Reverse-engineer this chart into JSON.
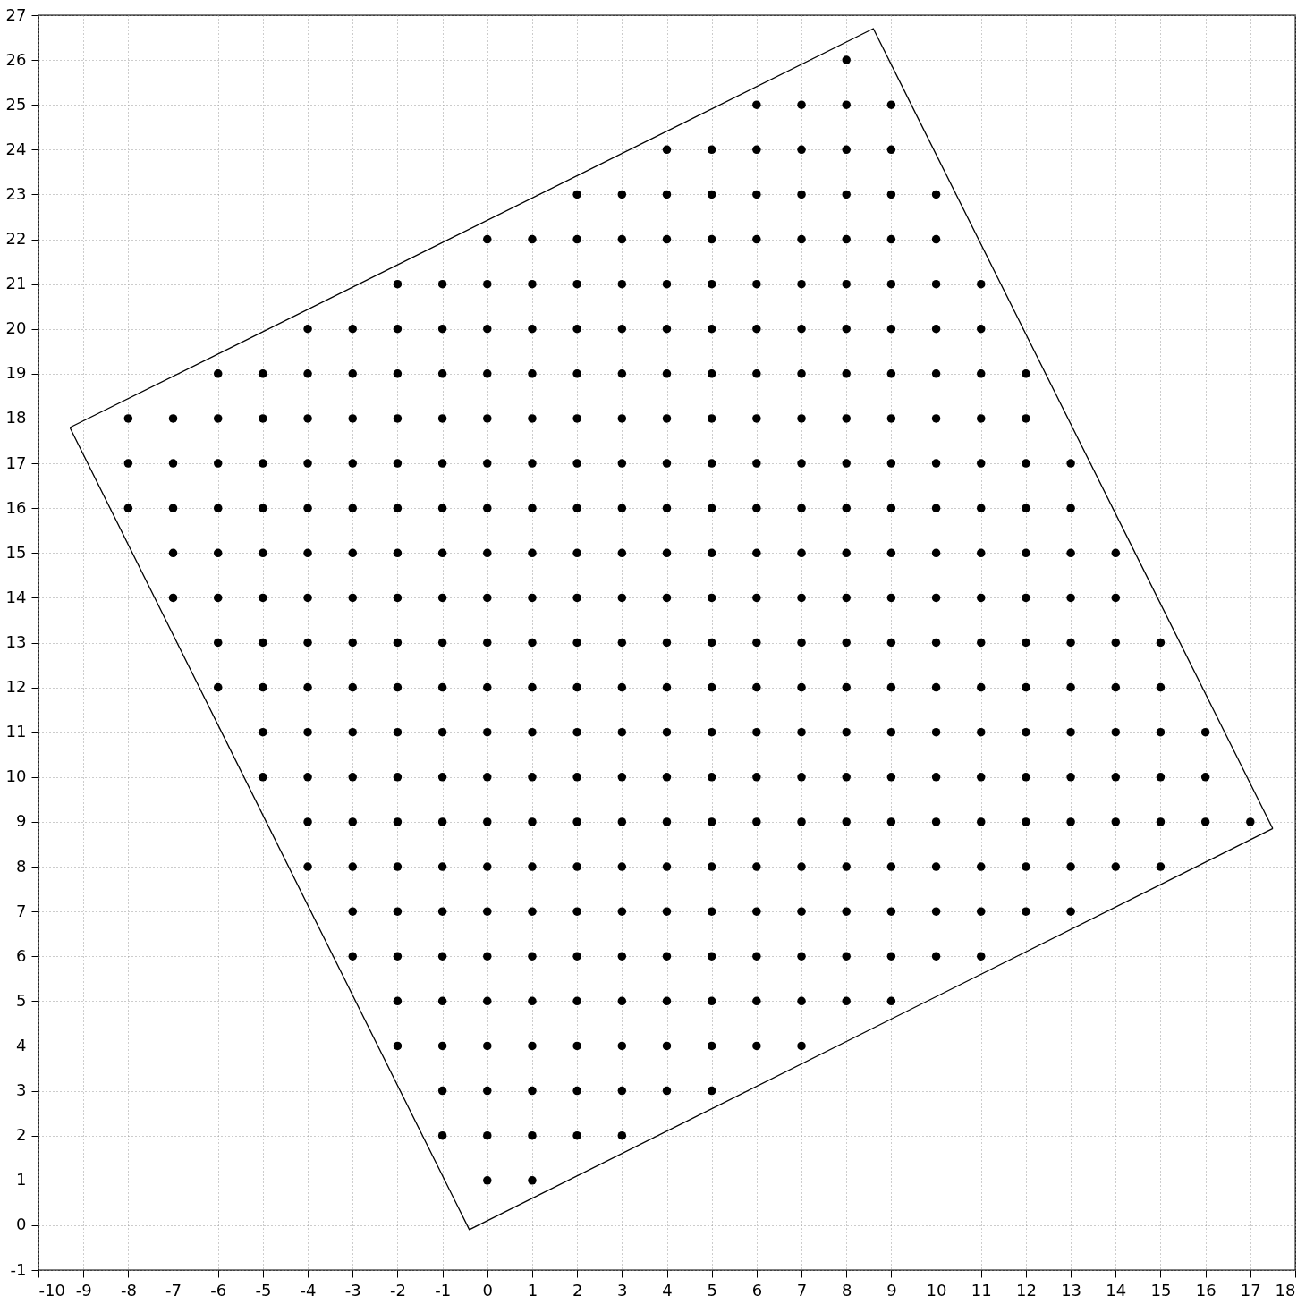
{
  "chart_data": {
    "type": "scatter",
    "marker": "circle",
    "grid": true,
    "xlim": [
      -10,
      18
    ],
    "ylim": [
      -1,
      27
    ],
    "xticks": [
      -10,
      -9,
      -8,
      -7,
      -6,
      -5,
      -4,
      -3,
      -2,
      -1,
      0,
      1,
      2,
      3,
      4,
      5,
      6,
      7,
      8,
      9,
      10,
      11,
      12,
      13,
      14,
      15,
      16,
      17,
      18
    ],
    "yticks": [
      -1,
      0,
      1,
      2,
      3,
      4,
      5,
      6,
      7,
      8,
      9,
      10,
      11,
      12,
      13,
      14,
      15,
      16,
      17,
      18,
      19,
      20,
      21,
      22,
      23,
      24,
      25,
      26,
      27
    ],
    "series": [
      {
        "type": "line",
        "marker": "none",
        "color": "#000000",
        "x": [
          -9.3,
          -0.4,
          17.5
        ],
        "values": [
          17.8,
          -0.1,
          8.85
        ]
      },
      {
        "type": "line",
        "marker": "none",
        "color": "#000000",
        "x": [
          -9.3,
          8.6,
          17.5
        ],
        "values": [
          17.8,
          26.7,
          8.85
        ]
      },
      {
        "type": "scatter",
        "color": "#000000",
        "x": [
          8
        ],
        "values": [
          26
        ]
      },
      {
        "type": "scatter",
        "color": "#000000",
        "x": [
          6,
          7,
          8,
          9
        ],
        "values": [
          25,
          25,
          25,
          25
        ]
      },
      {
        "type": "scatter",
        "color": "#000000",
        "x": [
          4,
          5,
          6,
          7,
          8,
          9
        ],
        "values": [
          24,
          24,
          24,
          24,
          24,
          24
        ]
      },
      {
        "type": "scatter",
        "color": "#000000",
        "x": [
          2,
          3,
          4,
          5,
          6,
          7,
          8,
          9,
          10
        ],
        "values": [
          23,
          23,
          23,
          23,
          23,
          23,
          23,
          23,
          23
        ]
      },
      {
        "type": "scatter",
        "color": "#000000",
        "x": [
          0,
          1,
          2,
          3,
          4,
          5,
          6,
          7,
          8,
          9,
          10
        ],
        "values": [
          22,
          22,
          22,
          22,
          22,
          22,
          22,
          22,
          22,
          22,
          22
        ]
      },
      {
        "type": "scatter",
        "color": "#000000",
        "x": [
          -2,
          -1,
          0,
          1,
          2,
          3,
          4,
          5,
          6,
          7,
          8,
          9,
          10,
          11
        ],
        "values": [
          21,
          21,
          21,
          21,
          21,
          21,
          21,
          21,
          21,
          21,
          21,
          21,
          21,
          21
        ]
      },
      {
        "type": "scatter",
        "color": "#000000",
        "x": [
          -4,
          -3,
          -2,
          -1,
          0,
          1,
          2,
          3,
          4,
          5,
          6,
          7,
          8,
          9,
          10,
          11
        ],
        "values": [
          20,
          20,
          20,
          20,
          20,
          20,
          20,
          20,
          20,
          20,
          20,
          20,
          20,
          20,
          20,
          20
        ]
      },
      {
        "type": "scatter",
        "color": "#000000",
        "x": [
          -6,
          -5,
          -4,
          -3,
          -2,
          -1,
          0,
          1,
          2,
          3,
          4,
          5,
          6,
          7,
          8,
          9,
          10,
          11,
          12
        ],
        "values": [
          19,
          19,
          19,
          19,
          19,
          19,
          19,
          19,
          19,
          19,
          19,
          19,
          19,
          19,
          19,
          19,
          19,
          19,
          19
        ]
      },
      {
        "type": "scatter",
        "color": "#000000",
        "x": [
          -8,
          -7,
          -6,
          -5,
          -4,
          -3,
          -2,
          -1,
          0,
          1,
          2,
          3,
          4,
          5,
          6,
          7,
          8,
          9,
          10,
          11,
          12
        ],
        "values": [
          18,
          18,
          18,
          18,
          18,
          18,
          18,
          18,
          18,
          18,
          18,
          18,
          18,
          18,
          18,
          18,
          18,
          18,
          18,
          18,
          18
        ]
      },
      {
        "type": "scatter",
        "color": "#000000",
        "x": [
          -8,
          -7,
          -6,
          -5,
          -4,
          -3,
          -2,
          -1,
          0,
          1,
          2,
          3,
          4,
          5,
          6,
          7,
          8,
          9,
          10,
          11,
          12,
          13
        ],
        "values": [
          17,
          17,
          17,
          17,
          17,
          17,
          17,
          17,
          17,
          17,
          17,
          17,
          17,
          17,
          17,
          17,
          17,
          17,
          17,
          17,
          17,
          17
        ]
      },
      {
        "type": "scatter",
        "color": "#000000",
        "x": [
          -8,
          -7,
          -6,
          -5,
          -4,
          -3,
          -2,
          -1,
          0,
          1,
          2,
          3,
          4,
          5,
          6,
          7,
          8,
          9,
          10,
          11,
          12,
          13
        ],
        "values": [
          16,
          16,
          16,
          16,
          16,
          16,
          16,
          16,
          16,
          16,
          16,
          16,
          16,
          16,
          16,
          16,
          16,
          16,
          16,
          16,
          16,
          16
        ]
      },
      {
        "type": "scatter",
        "color": "#000000",
        "x": [
          -7,
          -6,
          -5,
          -4,
          -3,
          -2,
          -1,
          0,
          1,
          2,
          3,
          4,
          5,
          6,
          7,
          8,
          9,
          10,
          11,
          12,
          13,
          14
        ],
        "values": [
          15,
          15,
          15,
          15,
          15,
          15,
          15,
          15,
          15,
          15,
          15,
          15,
          15,
          15,
          15,
          15,
          15,
          15,
          15,
          15,
          15,
          15
        ]
      },
      {
        "type": "scatter",
        "color": "#000000",
        "x": [
          -7,
          -6,
          -5,
          -4,
          -3,
          -2,
          -1,
          0,
          1,
          2,
          3,
          4,
          5,
          6,
          7,
          8,
          9,
          10,
          11,
          12,
          13,
          14
        ],
        "values": [
          14,
          14,
          14,
          14,
          14,
          14,
          14,
          14,
          14,
          14,
          14,
          14,
          14,
          14,
          14,
          14,
          14,
          14,
          14,
          14,
          14,
          14
        ]
      },
      {
        "type": "scatter",
        "color": "#000000",
        "x": [
          -6,
          -5,
          -4,
          -3,
          -2,
          -1,
          0,
          1,
          2,
          3,
          4,
          5,
          6,
          7,
          8,
          9,
          10,
          11,
          12,
          13,
          14,
          15
        ],
        "values": [
          13,
          13,
          13,
          13,
          13,
          13,
          13,
          13,
          13,
          13,
          13,
          13,
          13,
          13,
          13,
          13,
          13,
          13,
          13,
          13,
          13,
          13
        ]
      },
      {
        "type": "scatter",
        "color": "#000000",
        "x": [
          -6,
          -5,
          -4,
          -3,
          -2,
          -1,
          0,
          1,
          2,
          3,
          4,
          5,
          6,
          7,
          8,
          9,
          10,
          11,
          12,
          13,
          14,
          15
        ],
        "values": [
          12,
          12,
          12,
          12,
          12,
          12,
          12,
          12,
          12,
          12,
          12,
          12,
          12,
          12,
          12,
          12,
          12,
          12,
          12,
          12,
          12,
          12
        ]
      },
      {
        "type": "scatter",
        "color": "#000000",
        "x": [
          -5,
          -4,
          -3,
          -2,
          -1,
          0,
          1,
          2,
          3,
          4,
          5,
          6,
          7,
          8,
          9,
          10,
          11,
          12,
          13,
          14,
          15,
          16
        ],
        "values": [
          11,
          11,
          11,
          11,
          11,
          11,
          11,
          11,
          11,
          11,
          11,
          11,
          11,
          11,
          11,
          11,
          11,
          11,
          11,
          11,
          11,
          11
        ]
      },
      {
        "type": "scatter",
        "color": "#000000",
        "x": [
          -5,
          -4,
          -3,
          -2,
          -1,
          0,
          1,
          2,
          3,
          4,
          5,
          6,
          7,
          8,
          9,
          10,
          11,
          12,
          13,
          14,
          15,
          16
        ],
        "values": [
          10,
          10,
          10,
          10,
          10,
          10,
          10,
          10,
          10,
          10,
          10,
          10,
          10,
          10,
          10,
          10,
          10,
          10,
          10,
          10,
          10,
          10
        ]
      },
      {
        "type": "scatter",
        "color": "#000000",
        "x": [
          -4,
          -3,
          -2,
          -1,
          0,
          1,
          2,
          3,
          4,
          5,
          6,
          7,
          8,
          9,
          10,
          11,
          12,
          13,
          14,
          15,
          16,
          17
        ],
        "values": [
          9,
          9,
          9,
          9,
          9,
          9,
          9,
          9,
          9,
          9,
          9,
          9,
          9,
          9,
          9,
          9,
          9,
          9,
          9,
          9,
          9,
          9
        ]
      },
      {
        "type": "scatter",
        "color": "#000000",
        "x": [
          -4,
          -3,
          -2,
          -1,
          0,
          1,
          2,
          3,
          4,
          5,
          6,
          7,
          8,
          9,
          10,
          11,
          12,
          13,
          14,
          15
        ],
        "values": [
          8,
          8,
          8,
          8,
          8,
          8,
          8,
          8,
          8,
          8,
          8,
          8,
          8,
          8,
          8,
          8,
          8,
          8,
          8,
          8
        ]
      },
      {
        "type": "scatter",
        "color": "#000000",
        "x": [
          -3,
          -2,
          -1,
          0,
          1,
          2,
          3,
          4,
          5,
          6,
          7,
          8,
          9,
          10,
          11,
          12,
          13
        ],
        "values": [
          7,
          7,
          7,
          7,
          7,
          7,
          7,
          7,
          7,
          7,
          7,
          7,
          7,
          7,
          7,
          7,
          7
        ]
      },
      {
        "type": "scatter",
        "color": "#000000",
        "x": [
          -3,
          -2,
          -1,
          0,
          1,
          2,
          3,
          4,
          5,
          6,
          7,
          8,
          9,
          10,
          11
        ],
        "values": [
          6,
          6,
          6,
          6,
          6,
          6,
          6,
          6,
          6,
          6,
          6,
          6,
          6,
          6,
          6
        ]
      },
      {
        "type": "scatter",
        "color": "#000000",
        "x": [
          -2,
          -1,
          0,
          1,
          2,
          3,
          4,
          5,
          6,
          7,
          8,
          9
        ],
        "values": [
          5,
          5,
          5,
          5,
          5,
          5,
          5,
          5,
          5,
          5,
          5,
          5
        ]
      },
      {
        "type": "scatter",
        "color": "#000000",
        "x": [
          -2,
          -1,
          0,
          1,
          2,
          3,
          4,
          5,
          6,
          7
        ],
        "values": [
          4,
          4,
          4,
          4,
          4,
          4,
          4,
          4,
          4,
          4
        ]
      },
      {
        "type": "scatter",
        "color": "#000000",
        "x": [
          -1,
          0,
          1,
          2,
          3,
          4,
          5
        ],
        "values": [
          3,
          3,
          3,
          3,
          3,
          3,
          3
        ]
      },
      {
        "type": "scatter",
        "color": "#000000",
        "x": [
          -1,
          0,
          1,
          2,
          3
        ],
        "values": [
          2,
          2,
          2,
          2,
          2
        ]
      },
      {
        "type": "scatter",
        "color": "#000000",
        "x": [
          0,
          1
        ],
        "values": [
          1,
          1
        ]
      }
    ]
  }
}
